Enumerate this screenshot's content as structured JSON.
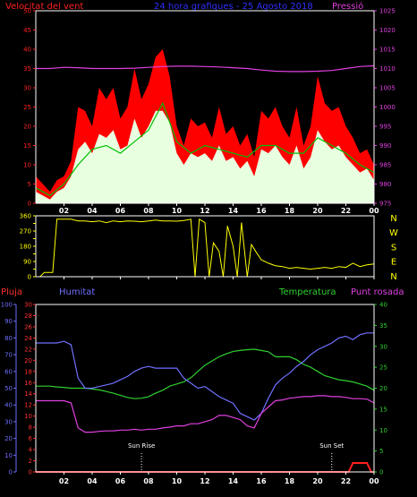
{
  "header": {
    "left_label": "Velocitat del vent",
    "center_label": "24 hora grafiques - 25 Agosto 2018",
    "right_label": "Pressió"
  },
  "colors": {
    "background": "#000000",
    "frame": "#ffffff",
    "wind_gust": "#ff0000",
    "wind_avg": "#e8ffe0",
    "wind_line": "#00c000",
    "pressure": "#e040e0",
    "direction": "#ffff00",
    "rain": "#ff2020",
    "humidity": "#7070ff",
    "temperature": "#30d030",
    "dew_point": "#e040e0",
    "pluja_label": "#ff3030",
    "humitat_label": "#7070ff",
    "temp_label": "#30d030",
    "dew_label": "#e040e0"
  },
  "x_axis": {
    "ticks": [
      "02",
      "04",
      "06",
      "08",
      "10",
      "12",
      "14",
      "16",
      "18",
      "20",
      "22",
      "00"
    ],
    "hours": [
      2,
      4,
      6,
      8,
      10,
      12,
      14,
      16,
      18,
      20,
      22,
      24
    ]
  },
  "compass": [
    "N",
    "W",
    "S",
    "E",
    "N"
  ],
  "lower_labels": {
    "pluja": "Pluja",
    "humitat": "Humitat",
    "temperatura": "Temperatura",
    "punt_rosada": "Punt rosada",
    "sun_rise": "Sun Rise",
    "sun_set": "Sun Set"
  },
  "chart_data": [
    {
      "type": "area",
      "ylim_left": [
        0,
        50
      ],
      "ylim_right": [
        975,
        1025
      ],
      "yticks_left": [
        0,
        5,
        10,
        15,
        20,
        25,
        30,
        35,
        40,
        45,
        50
      ],
      "yticks_right": [
        975,
        980,
        985,
        990,
        995,
        1000,
        1005,
        1010,
        1015,
        1020,
        1025
      ],
      "series": [
        {
          "name": "Velocitat del vent",
          "x": [
            0,
            0.5,
            1,
            1.5,
            2,
            2.5,
            3,
            3.5,
            4,
            4.5,
            5,
            5.5,
            6,
            6.5,
            7,
            7.5,
            8,
            8.5,
            9,
            9.5,
            10,
            10.5,
            11,
            11.5,
            12,
            12.5,
            13,
            13.5,
            14,
            14.5,
            15,
            15.5,
            16,
            16.5,
            17,
            17.5,
            18,
            18.5,
            19,
            19.5,
            20,
            20.5,
            21,
            21.5,
            22,
            22.5,
            23,
            23.5,
            24
          ],
          "values": [
            7,
            5,
            3,
            6,
            7,
            11,
            25,
            24,
            20,
            30,
            27,
            30,
            22,
            25,
            35,
            27,
            31,
            38,
            40,
            33,
            20,
            15,
            22,
            20,
            21,
            17,
            25,
            18,
            20,
            15,
            18,
            12,
            24,
            22,
            25,
            20,
            17,
            25,
            15,
            20,
            33,
            26,
            24,
            25,
            20,
            17,
            13,
            14,
            10
          ]
        },
        {
          "name": "wind avg",
          "x": [
            0,
            0.5,
            1,
            1.5,
            2,
            2.5,
            3,
            3.5,
            4,
            4.5,
            5,
            5.5,
            6,
            6.5,
            7,
            7.5,
            8,
            8.5,
            9,
            9.5,
            10,
            10.5,
            11,
            11.5,
            12,
            12.5,
            13,
            13.5,
            14,
            14.5,
            15,
            15.5,
            16,
            16.5,
            17,
            17.5,
            18,
            18.5,
            19,
            19.5,
            20,
            20.5,
            21,
            21.5,
            22,
            22.5,
            23,
            23.5,
            24
          ],
          "values": [
            3,
            2,
            1,
            3,
            4,
            7,
            14,
            16,
            13,
            18,
            17,
            19,
            14,
            15,
            22,
            17,
            20,
            24,
            24,
            21,
            13,
            10,
            13,
            12,
            13,
            11,
            15,
            11,
            12,
            9,
            11,
            7,
            14,
            13,
            15,
            12,
            10,
            15,
            9,
            12,
            19,
            16,
            14,
            15,
            12,
            10,
            8,
            9,
            6
          ]
        },
        {
          "name": "wind line",
          "x": [
            0,
            1,
            2,
            3,
            4,
            5,
            6,
            7,
            8,
            9,
            10,
            11,
            12,
            13,
            14,
            15,
            16,
            17,
            18,
            19,
            20,
            21,
            22,
            23,
            24
          ],
          "values": [
            4,
            2,
            5,
            10,
            14,
            15,
            13,
            16,
            19,
            26,
            16,
            13,
            15,
            14,
            13,
            12,
            15,
            15,
            13,
            13,
            17,
            15,
            13,
            10,
            8
          ]
        },
        {
          "name": "Pressió",
          "x": [
            0,
            1,
            2,
            3,
            4,
            5,
            6,
            7,
            8,
            9,
            10,
            11,
            12,
            13,
            14,
            15,
            16,
            17,
            18,
            19,
            20,
            21,
            22,
            23,
            24
          ],
          "values": [
            1010,
            1010,
            1010.3,
            1010.2,
            1010,
            1010,
            1010,
            1010.1,
            1010.3,
            1010.5,
            1010.6,
            1010.6,
            1010.5,
            1010.4,
            1010.2,
            1010,
            1009.6,
            1009.3,
            1009.2,
            1009.2,
            1009.3,
            1009.5,
            1010,
            1010.5,
            1010.7
          ]
        }
      ]
    },
    {
      "type": "line",
      "ylim": [
        0,
        360
      ],
      "yticks": [
        0,
        45,
        90,
        135,
        180,
        225,
        270,
        315,
        360
      ],
      "ytick_labels": [
        "0",
        "",
        "90",
        "",
        "180",
        "",
        "270",
        "",
        "360"
      ],
      "series": [
        {
          "name": "direction",
          "x": [
            0,
            0.3,
            0.6,
            0.9,
            1.2,
            1.5,
            2,
            2.5,
            3,
            3.5,
            4,
            4.5,
            5,
            5.5,
            6,
            6.5,
            7,
            7.5,
            8,
            8.5,
            9,
            9.5,
            10,
            10.5,
            11,
            11.3,
            11.6,
            12,
            12.3,
            12.6,
            13,
            13.3,
            13.6,
            14,
            14.3,
            14.6,
            15,
            15.3,
            15.6,
            16,
            16.5,
            17,
            17.5,
            18,
            18.5,
            19,
            19.5,
            20,
            20.5,
            21,
            21.5,
            22,
            22.5,
            23,
            23.5,
            24
          ],
          "values": [
            0,
            0,
            25,
            25,
            25,
            340,
            340,
            340,
            330,
            330,
            325,
            330,
            320,
            330,
            325,
            330,
            328,
            325,
            330,
            335,
            330,
            330,
            328,
            332,
            340,
            0,
            340,
            320,
            0,
            200,
            150,
            0,
            300,
            180,
            0,
            320,
            0,
            190,
            150,
            100,
            80,
            65,
            60,
            50,
            55,
            50,
            45,
            50,
            55,
            50,
            60,
            55,
            80,
            60,
            70,
            75
          ]
        }
      ]
    },
    {
      "type": "line",
      "ylim_humidity": [
        0,
        100
      ],
      "ylim_rain": [
        0,
        30
      ],
      "ylim_temp": [
        0,
        40
      ],
      "yticks_humidity": [
        0,
        10,
        20,
        30,
        40,
        50,
        60,
        70,
        80,
        90,
        100
      ],
      "yticks_rain": [
        0,
        2,
        4,
        6,
        8,
        10,
        12,
        14,
        16,
        18,
        20,
        22,
        24,
        26,
        28,
        30
      ],
      "yticks_temp": [
        0,
        5,
        10,
        15,
        20,
        25,
        30,
        35,
        40
      ],
      "series": [
        {
          "name": "Humitat",
          "x": [
            0,
            0.5,
            1,
            1.5,
            2,
            2.5,
            3,
            3.5,
            4,
            4.5,
            5,
            5.5,
            6,
            6.5,
            7,
            7.5,
            8,
            8.5,
            9,
            9.5,
            10,
            10.5,
            11,
            11.5,
            12,
            12.5,
            13,
            13.5,
            14,
            14.5,
            15,
            15.5,
            16,
            16.5,
            17,
            17.5,
            18,
            18.5,
            19,
            19.5,
            20,
            20.5,
            21,
            21.5,
            22,
            22.5,
            23,
            23.5,
            24
          ],
          "values": [
            77,
            77,
            77,
            77,
            78,
            76,
            56,
            50,
            50,
            51,
            52,
            53,
            55,
            57,
            60,
            62,
            63,
            62,
            62,
            62,
            62,
            56,
            53,
            50,
            51,
            48,
            45,
            43,
            41,
            35,
            33,
            31,
            35,
            44,
            52,
            56,
            59,
            63,
            66,
            70,
            73,
            75,
            77,
            80,
            81,
            79,
            82,
            83,
            83
          ]
        },
        {
          "name": "Temperatura",
          "x": [
            0,
            0.5,
            1,
            1.5,
            2,
            2.5,
            3,
            3.5,
            4,
            4.5,
            5,
            5.5,
            6,
            6.5,
            7,
            7.5,
            8,
            8.5,
            9,
            9.5,
            10,
            10.5,
            11,
            11.5,
            12,
            12.5,
            13,
            13.5,
            14,
            14.5,
            15,
            15.5,
            16,
            16.5,
            17,
            17.5,
            18,
            18.5,
            19,
            19.5,
            20,
            20.5,
            21,
            21.5,
            22,
            22.5,
            23,
            23.5,
            24
          ],
          "values": [
            20.5,
            20.5,
            20.5,
            20.3,
            20.2,
            20,
            20,
            20,
            19.8,
            19.6,
            19.2,
            18.8,
            18.3,
            17.8,
            17.5,
            17.6,
            18,
            18.8,
            19.5,
            20.5,
            21,
            21.5,
            22.5,
            24,
            25.5,
            26.5,
            27.5,
            28.2,
            28.8,
            29,
            29.2,
            29.3,
            29,
            28.7,
            27.5,
            27.5,
            27.5,
            26.8,
            25.7,
            25,
            24,
            23,
            22.5,
            22,
            21.8,
            21.5,
            21,
            20.5,
            19.5
          ]
        },
        {
          "name": "Punt rosada",
          "x": [
            0,
            0.5,
            1,
            1.5,
            2,
            2.5,
            3,
            3.5,
            4,
            4.5,
            5,
            5.5,
            6,
            6.5,
            7,
            7.5,
            8,
            8.5,
            9,
            9.5,
            10,
            10.5,
            11,
            11.5,
            12,
            12.5,
            13,
            13.5,
            14,
            14.5,
            15,
            15.5,
            16,
            16.5,
            17,
            17.5,
            18,
            18.5,
            19,
            19.5,
            20,
            20.5,
            21,
            21.5,
            22,
            22.5,
            23,
            23.5,
            24
          ],
          "values": [
            17,
            17,
            17,
            17,
            17,
            16.5,
            10.5,
            9.5,
            9.5,
            9.7,
            9.8,
            9.8,
            10,
            10,
            10.2,
            10,
            10.2,
            10.2,
            10.5,
            10.7,
            11,
            11,
            11.5,
            11.5,
            12,
            12.5,
            13.5,
            13.5,
            13,
            12.5,
            11,
            10.5,
            14,
            15.5,
            17,
            17.2,
            17.6,
            17.8,
            18,
            18,
            18.2,
            18.2,
            18,
            18,
            17.8,
            17.5,
            17.5,
            17.4,
            16.5
          ]
        },
        {
          "name": "Pluja",
          "x": [
            0,
            22.2,
            22.5,
            23.5,
            23.8,
            24
          ],
          "values": [
            0,
            0,
            1.6,
            1.6,
            0,
            0
          ]
        }
      ],
      "markers": [
        {
          "label": "Sun Rise",
          "hour": 7.5
        },
        {
          "label": "Sun Set",
          "hour": 21
        }
      ]
    }
  ]
}
